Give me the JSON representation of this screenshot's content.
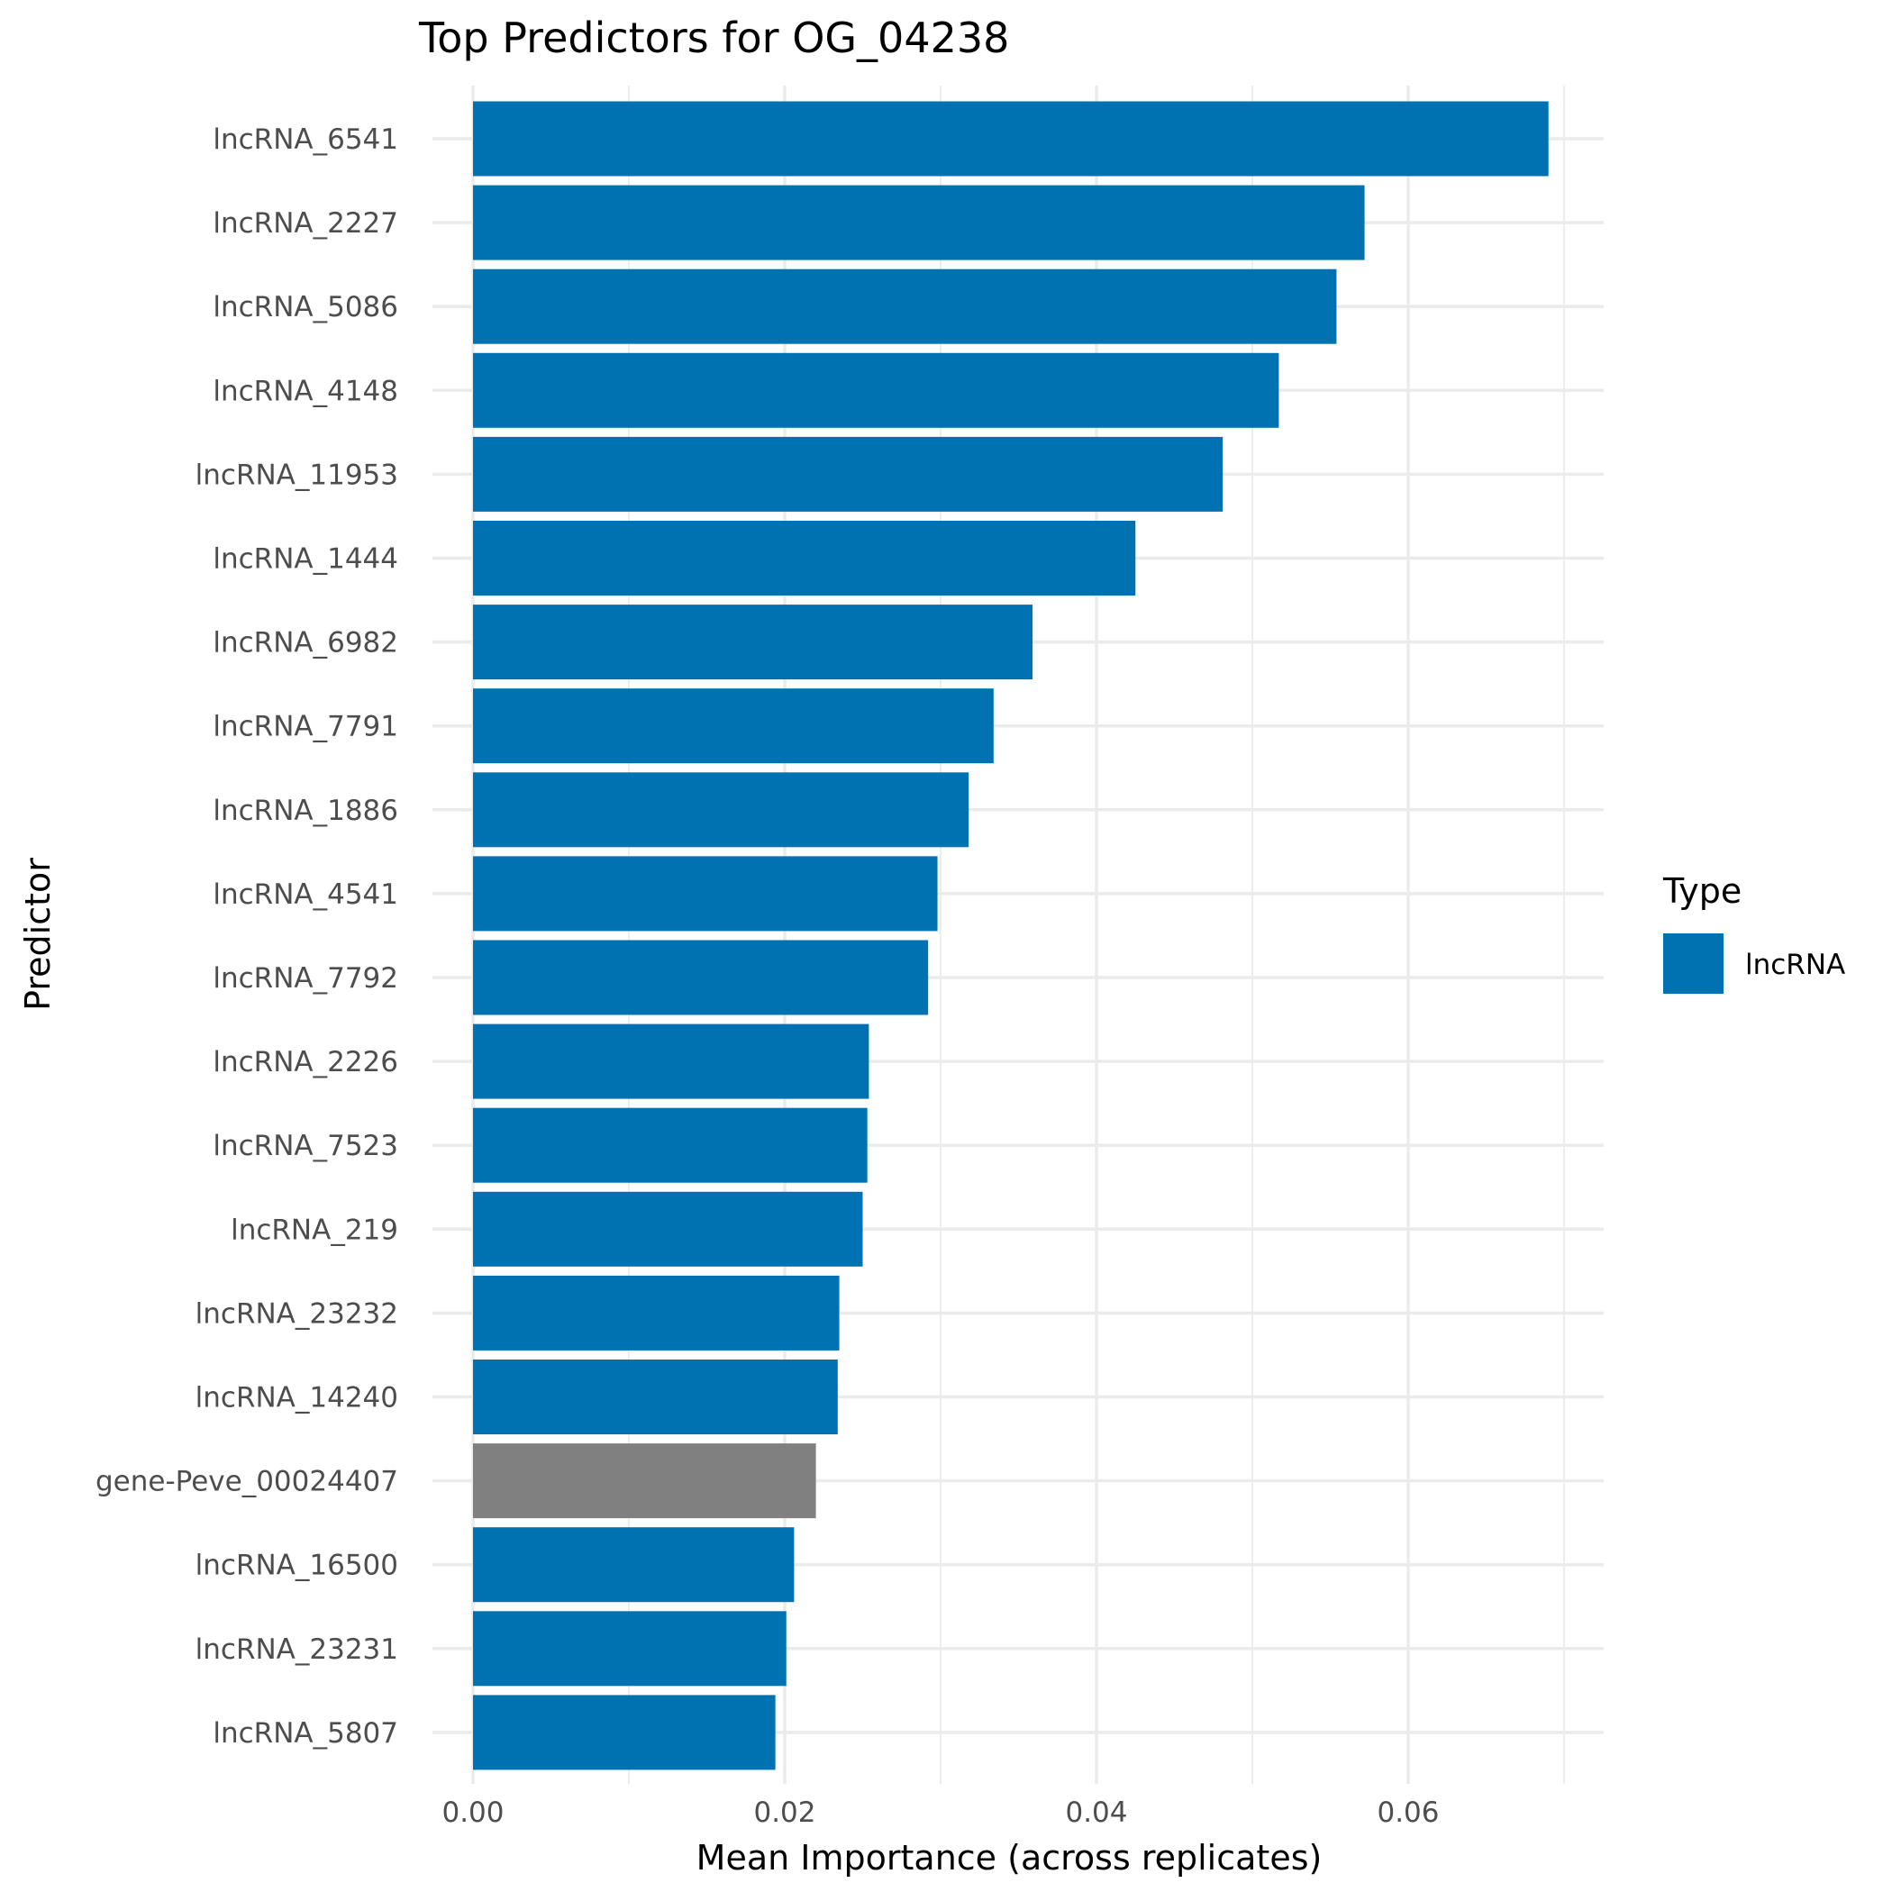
{
  "chart_data": {
    "type": "bar",
    "orientation": "horizontal",
    "title": "Top Predictors for OG_04238",
    "xlabel": "Mean Importance (across replicates)",
    "ylabel": "Predictor",
    "xlim": [
      0,
      0.0725
    ],
    "x_ticks": [
      0.0,
      0.02,
      0.04,
      0.06
    ],
    "x_tick_labels": [
      "0.00",
      "0.02",
      "0.04",
      "0.06"
    ],
    "grid": true,
    "legend": {
      "title": "Type",
      "position": "right",
      "entries": [
        {
          "label": "lncRNA",
          "color": "#0072B2"
        }
      ]
    },
    "categories": [
      "lncRNA_6541",
      "lncRNA_2227",
      "lncRNA_5086",
      "lncRNA_4148",
      "lncRNA_11953",
      "lncRNA_1444",
      "lncRNA_6982",
      "lncRNA_7791",
      "lncRNA_1886",
      "lncRNA_4541",
      "lncRNA_7792",
      "lncRNA_2226",
      "lncRNA_7523",
      "lncRNA_219",
      "lncRNA_23232",
      "lncRNA_14240",
      "gene-Peve_00024407",
      "lncRNA_16500",
      "lncRNA_23231",
      "lncRNA_5807"
    ],
    "values": [
      0.069,
      0.0572,
      0.0554,
      0.0517,
      0.0481,
      0.0425,
      0.0359,
      0.0334,
      0.0318,
      0.0298,
      0.0292,
      0.0254,
      0.0253,
      0.025,
      0.0235,
      0.0234,
      0.022,
      0.0206,
      0.0201,
      0.0194
    ],
    "colors": [
      "#0072B2",
      "#0072B2",
      "#0072B2",
      "#0072B2",
      "#0072B2",
      "#0072B2",
      "#0072B2",
      "#0072B2",
      "#0072B2",
      "#0072B2",
      "#0072B2",
      "#0072B2",
      "#0072B2",
      "#0072B2",
      "#0072B2",
      "#0072B2",
      "#808080",
      "#0072B2",
      "#0072B2",
      "#0072B2"
    ]
  }
}
